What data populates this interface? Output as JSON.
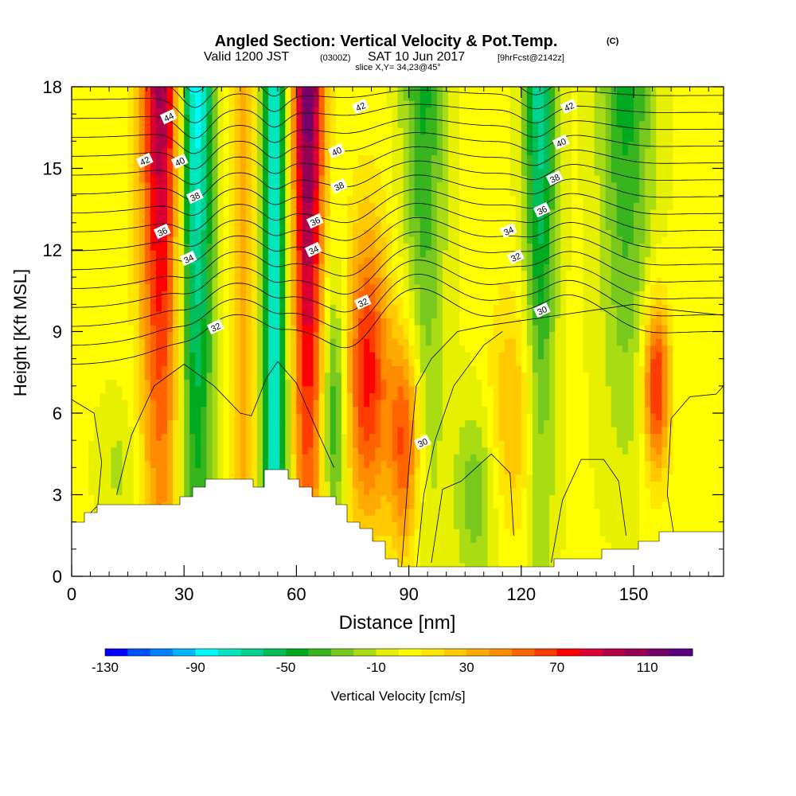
{
  "header": {
    "title": "Angled Section: Vertical Velocity & Pot.Temp.",
    "title_unit": "(C)",
    "valid_prefix": "Valid 1200 JST",
    "valid_utc": "(0300Z)",
    "valid_date": "SAT 10 Jun 2017",
    "forecast_tag": "[9hrFcst@2142z]",
    "slice": "slice X,Y= 34,23@45°"
  },
  "chart_data": {
    "type": "heatmap",
    "xlabel": "Distance [nm]",
    "ylabel": "Height [Kft MSL]",
    "xlim": [
      0,
      174
    ],
    "ylim": [
      0,
      18
    ],
    "x_ticks": [
      "0",
      "30",
      "60",
      "90",
      "120",
      "150"
    ],
    "y_ticks": [
      "0",
      "3",
      "6",
      "9",
      "12",
      "15",
      "18"
    ],
    "x_tick_values": [
      0,
      30,
      60,
      90,
      120,
      150
    ],
    "y_tick_values": [
      0,
      3,
      6,
      9,
      12,
      15,
      18
    ],
    "colorbar": {
      "label": "Vertical Velocity [cm/s]",
      "min": -130,
      "step": 10,
      "tick_labels": [
        "-130",
        "-90",
        "-50",
        "-10",
        "30",
        "70",
        "110"
      ],
      "colors": [
        "#0000ff",
        "#0050ff",
        "#0082ff",
        "#00b4ff",
        "#00fafa",
        "#00e6be",
        "#00d290",
        "#00be5a",
        "#00aa1e",
        "#37b41e",
        "#78c81e",
        "#aadc14",
        "#e6f000",
        "#ffff00",
        "#ffe600",
        "#ffc800",
        "#ffaa00",
        "#ff8c00",
        "#ff6400",
        "#ff3c00",
        "#ff0000",
        "#dc0032",
        "#b40046",
        "#960055",
        "#780069",
        "#5a0082"
      ]
    },
    "isentrope_labels": [
      "44",
      "42",
      "40",
      "38",
      "36",
      "34",
      "32",
      "42",
      "40",
      "38",
      "36",
      "34",
      "32",
      "42",
      "40",
      "38",
      "36",
      "34",
      "32",
      "30",
      "30"
    ],
    "isentrope_interval": 1,
    "updraft_columns_nm": [
      25,
      63,
      78,
      88,
      156
    ],
    "downdraft_columns_nm": [
      33,
      54,
      93,
      125,
      148
    ]
  }
}
